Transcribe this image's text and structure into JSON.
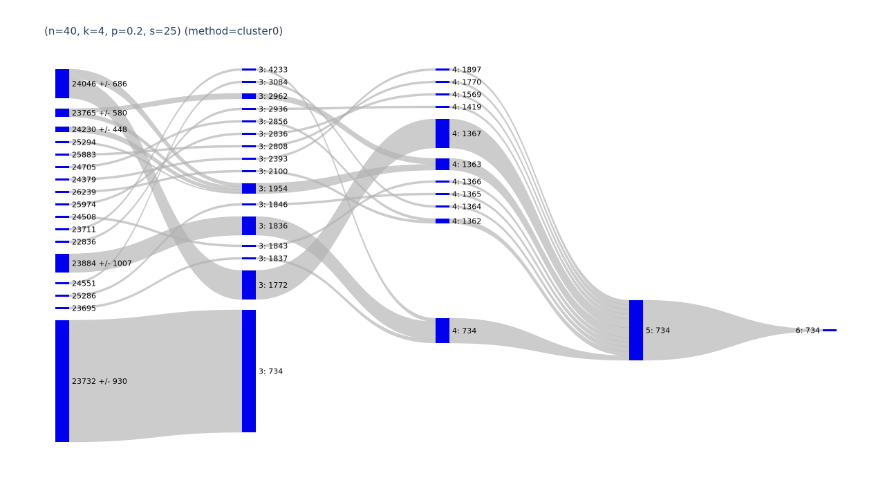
{
  "title": "(n=40, k=4, p=0.2, s=25) (method=cluster0)",
  "colors": {
    "node": "#0000ee",
    "link": "#b0b0b0",
    "title": "#2a3f5f"
  },
  "chart_data": {
    "type": "sankey",
    "nodes": [
      {
        "id": "a0",
        "label": "24046 +/- 686",
        "column": 0
      },
      {
        "id": "a1",
        "label": "23765 +/- 580",
        "column": 0
      },
      {
        "id": "a2",
        "label": "24230 +/- 448",
        "column": 0
      },
      {
        "id": "a3",
        "label": "25294",
        "column": 0
      },
      {
        "id": "a4",
        "label": "25883",
        "column": 0
      },
      {
        "id": "a5",
        "label": "24705",
        "column": 0
      },
      {
        "id": "a6",
        "label": "24379",
        "column": 0
      },
      {
        "id": "a7",
        "label": "26239",
        "column": 0
      },
      {
        "id": "a8",
        "label": "25974",
        "column": 0
      },
      {
        "id": "a9",
        "label": "24508",
        "column": 0
      },
      {
        "id": "a10",
        "label": "23711",
        "column": 0
      },
      {
        "id": "a11",
        "label": "22836",
        "column": 0
      },
      {
        "id": "a12",
        "label": "23884 +/- 1007",
        "column": 0
      },
      {
        "id": "a13",
        "label": "24551",
        "column": 0
      },
      {
        "id": "a14",
        "label": "25286",
        "column": 0
      },
      {
        "id": "a15",
        "label": "23695",
        "column": 0
      },
      {
        "id": "a16",
        "label": "23732 +/- 930",
        "column": 0
      },
      {
        "id": "b0",
        "label": "3: 4233",
        "column": 1
      },
      {
        "id": "b1",
        "label": "3: 3084",
        "column": 1
      },
      {
        "id": "b2",
        "label": "3: 2962",
        "column": 1
      },
      {
        "id": "b3",
        "label": "3: 2936",
        "column": 1
      },
      {
        "id": "b4",
        "label": "3: 2856",
        "column": 1
      },
      {
        "id": "b5",
        "label": "3: 2836",
        "column": 1
      },
      {
        "id": "b6",
        "label": "3: 2808",
        "column": 1
      },
      {
        "id": "b7",
        "label": "3: 2393",
        "column": 1
      },
      {
        "id": "b8",
        "label": "3: 2100",
        "column": 1
      },
      {
        "id": "b9",
        "label": "3: 1954",
        "column": 1
      },
      {
        "id": "b10",
        "label": "3: 1846",
        "column": 1
      },
      {
        "id": "b11",
        "label": "3: 1836",
        "column": 1
      },
      {
        "id": "b12",
        "label": "3: 1843",
        "column": 1
      },
      {
        "id": "b13",
        "label": "3: 1837",
        "column": 1
      },
      {
        "id": "b14",
        "label": "3: 1772",
        "column": 1
      },
      {
        "id": "b15",
        "label": "3: 734",
        "column": 1
      },
      {
        "id": "c0",
        "label": "4: 1897",
        "column": 2
      },
      {
        "id": "c1",
        "label": "4: 1770",
        "column": 2
      },
      {
        "id": "c2",
        "label": "4: 1569",
        "column": 2
      },
      {
        "id": "c3",
        "label": "4: 1419",
        "column": 2
      },
      {
        "id": "c4",
        "label": "4: 1367",
        "column": 2
      },
      {
        "id": "c5",
        "label": "4: 1363",
        "column": 2
      },
      {
        "id": "c6",
        "label": "4: 1366",
        "column": 2
      },
      {
        "id": "c7",
        "label": "4: 1365",
        "column": 2
      },
      {
        "id": "c8",
        "label": "4: 1364",
        "column": 2
      },
      {
        "id": "c9",
        "label": "4: 1362",
        "column": 2
      },
      {
        "id": "c10",
        "label": "4: 734",
        "column": 2
      },
      {
        "id": "d0",
        "label": "5: 734",
        "column": 3
      },
      {
        "id": "e0",
        "label": "6: 734",
        "column": 4,
        "label_side": "left"
      }
    ],
    "links": [
      {
        "source": "a0",
        "target": "b14",
        "value": 2
      },
      {
        "source": "a0",
        "target": "b9",
        "value": 1
      },
      {
        "source": "a1",
        "target": "b2",
        "value": 1
      },
      {
        "source": "a1",
        "target": "b9",
        "value": 1
      },
      {
        "source": "a2",
        "target": "b9",
        "value": 1
      },
      {
        "source": "a3",
        "target": "b9",
        "value": 0.3
      },
      {
        "source": "a4",
        "target": "b6",
        "value": 0.3
      },
      {
        "source": "a5",
        "target": "b4",
        "value": 0.3
      },
      {
        "source": "a6",
        "target": "b7",
        "value": 0.3
      },
      {
        "source": "a7",
        "target": "b8",
        "value": 0.3
      },
      {
        "source": "a8",
        "target": "b5",
        "value": 0.3
      },
      {
        "source": "a9",
        "target": "b12",
        "value": 0.3
      },
      {
        "source": "a10",
        "target": "b0",
        "value": 0.3
      },
      {
        "source": "a11",
        "target": "b3",
        "value": 0.3
      },
      {
        "source": "a12",
        "target": "b11",
        "value": 2
      },
      {
        "source": "a13",
        "target": "b1",
        "value": 0.3
      },
      {
        "source": "a14",
        "target": "b10",
        "value": 0.3
      },
      {
        "source": "a15",
        "target": "b13",
        "value": 0.3
      },
      {
        "source": "a16",
        "target": "b15",
        "value": 10
      },
      {
        "source": "b0",
        "target": "c10",
        "value": 0.3
      },
      {
        "source": "b1",
        "target": "c8",
        "value": 0.3
      },
      {
        "source": "b2",
        "target": "c5",
        "value": 1
      },
      {
        "source": "b3",
        "target": "c3",
        "value": 0.3
      },
      {
        "source": "b4",
        "target": "c9",
        "value": 0.3
      },
      {
        "source": "b5",
        "target": "c2",
        "value": 0.3
      },
      {
        "source": "b6",
        "target": "c1",
        "value": 0.3
      },
      {
        "source": "b7",
        "target": "c0",
        "value": 0.3
      },
      {
        "source": "b8",
        "target": "c9",
        "value": 0.3
      },
      {
        "source": "b9",
        "target": "c5",
        "value": 1
      },
      {
        "source": "b10",
        "target": "c7",
        "value": 0.3
      },
      {
        "source": "b11",
        "target": "c10",
        "value": 1.5
      },
      {
        "source": "b12",
        "target": "c6",
        "value": 0.3
      },
      {
        "source": "b13",
        "target": "c10",
        "value": 0.3
      },
      {
        "source": "b14",
        "target": "c4",
        "value": 2.3
      },
      {
        "source": "c0",
        "target": "d0",
        "value": 0.3
      },
      {
        "source": "c1",
        "target": "d0",
        "value": 0.3
      },
      {
        "source": "c2",
        "target": "d0",
        "value": 0.3
      },
      {
        "source": "c3",
        "target": "d0",
        "value": 0.3
      },
      {
        "source": "c4",
        "target": "d0",
        "value": 0.6
      },
      {
        "source": "c5",
        "target": "d0",
        "value": 0.6
      },
      {
        "source": "c6",
        "target": "d0",
        "value": 0.3
      },
      {
        "source": "c7",
        "target": "d0",
        "value": 0.3
      },
      {
        "source": "c8",
        "target": "d0",
        "value": 0.3
      },
      {
        "source": "c9",
        "target": "d0",
        "value": 0.3
      },
      {
        "source": "c10",
        "target": "d0",
        "value": 0.3
      },
      {
        "source": "d0",
        "target": "e0",
        "value": 0.3
      }
    ]
  }
}
